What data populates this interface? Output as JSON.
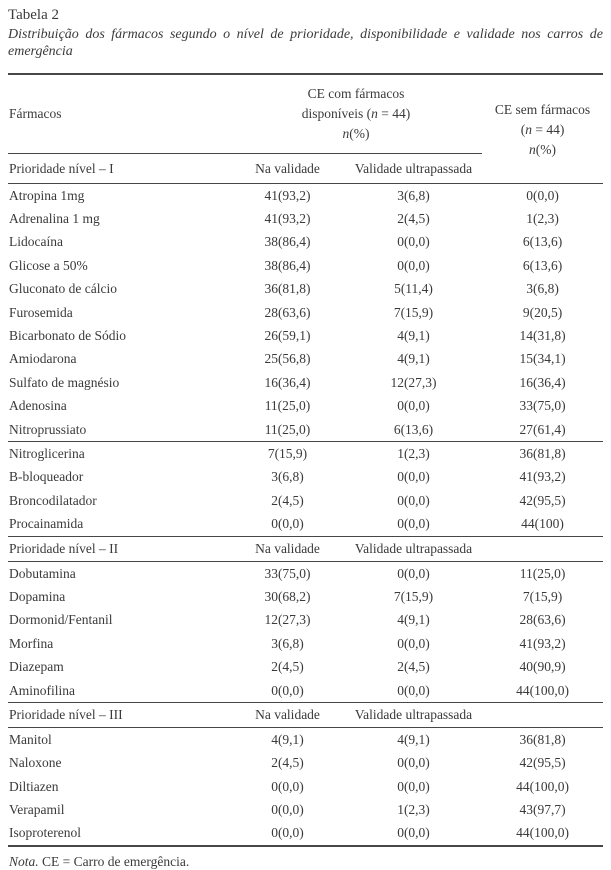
{
  "title": "Tabela 2",
  "subtitle": "Distribuição dos fármacos segundo o nível de prioridade, disponibilidade e validade nos carros de emergência",
  "colors": {
    "background": "#ffffff",
    "text": "#3a3a3a",
    "rule": "#474747"
  },
  "table": {
    "col_headers": {
      "farmacos": "Fármacos",
      "group_available": [
        "CE com fármacos",
        "disponíveis (n = 44)",
        "n(%)"
      ],
      "group_without": [
        "CE sem fármacos",
        "(n = 44)",
        "n(%)"
      ]
    },
    "sections": [
      {
        "label": "Prioridade nível – I",
        "sub_headers": [
          "Na validade",
          "Validade ultrapassada"
        ],
        "rows": [
          {
            "name": "Atropina 1mg",
            "valid": "41(93,2)",
            "expired": "3(6,8)",
            "without": "0(0,0)"
          },
          {
            "name": "Adrenalina 1 mg",
            "valid": "41(93,2)",
            "expired": "2(4,5)",
            "without": "1(2,3)"
          },
          {
            "name": "Lidocaína",
            "valid": "38(86,4)",
            "expired": "0(0,0)",
            "without": "6(13,6)"
          },
          {
            "name": "Glicose a 50%",
            "valid": "38(86,4)",
            "expired": "0(0,0)",
            "without": "6(13,6)"
          },
          {
            "name": "Gluconato de cálcio",
            "valid": "36(81,8)",
            "expired": "5(11,4)",
            "without": "3(6,8)"
          },
          {
            "name": "Furosemida",
            "valid": "28(63,6)",
            "expired": "7(15,9)",
            "without": "9(20,5)"
          },
          {
            "name": "Bicarbonato de Sódio",
            "valid": "26(59,1)",
            "expired": "4(9,1)",
            "without": "14(31,8)"
          },
          {
            "name": "Amiodarona",
            "valid": "25(56,8)",
            "expired": "4(9,1)",
            "without": "15(34,1)"
          },
          {
            "name": "Sulfato de magnésio",
            "valid": "16(36,4)",
            "expired": "12(27,3)",
            "without": "16(36,4)"
          },
          {
            "name": "Adenosina",
            "valid": "11(25,0)",
            "expired": "0(0,0)",
            "without": "33(75,0)"
          },
          {
            "name": "Nitroprussiato",
            "valid": "11(25,0)",
            "expired": "6(13,6)",
            "without": "27(61,4)",
            "divider_after": true
          },
          {
            "name": "Nitroglicerina",
            "valid": "7(15,9)",
            "expired": "1(2,3)",
            "without": "36(81,8)"
          },
          {
            "name": "B-bloqueador",
            "valid": "3(6,8)",
            "expired": "0(0,0)",
            "without": "41(93,2)"
          },
          {
            "name": "Broncodilatador",
            "valid": "2(4,5)",
            "expired": "0(0,0)",
            "without": "42(95,5)"
          },
          {
            "name": "Procainamida",
            "valid": "0(0,0)",
            "expired": "0(0,0)",
            "without": "44(100)"
          }
        ]
      },
      {
        "label": "Prioridade nível – II",
        "sub_headers": [
          "Na validade",
          "Validade ultrapassada"
        ],
        "rows": [
          {
            "name": "Dobutamina",
            "valid": "33(75,0)",
            "expired": "0(0,0)",
            "without": "11(25,0)"
          },
          {
            "name": "Dopamina",
            "valid": "30(68,2)",
            "expired": "7(15,9)",
            "without": "7(15,9)"
          },
          {
            "name": "Dormonid/Fentanil",
            "valid": "12(27,3)",
            "expired": "4(9,1)",
            "without": "28(63,6)"
          },
          {
            "name": "Morfina",
            "valid": "3(6,8)",
            "expired": "0(0,0)",
            "without": "41(93,2)"
          },
          {
            "name": "Diazepam",
            "valid": "2(4,5)",
            "expired": "2(4,5)",
            "without": "40(90,9)"
          },
          {
            "name": "Aminofilina",
            "valid": "0(0,0)",
            "expired": "0(0,0)",
            "without": "44(100,0)"
          }
        ]
      },
      {
        "label": "Prioridade nível – III",
        "sub_headers": [
          "Na validade",
          "Validade ultrapassada"
        ],
        "rows": [
          {
            "name": "Manitol",
            "valid": "4(9,1)",
            "expired": "4(9,1)",
            "without": "36(81,8)"
          },
          {
            "name": "Naloxone",
            "valid": "2(4,5)",
            "expired": "0(0,0)",
            "without": "42(95,5)"
          },
          {
            "name": "Diltiazen",
            "valid": "0(0,0)",
            "expired": "0(0,0)",
            "without": "44(100,0)"
          },
          {
            "name": "Verapamil",
            "valid": "0(0,0)",
            "expired": "1(2,3)",
            "without": "43(97,7)"
          },
          {
            "name": "Isoproterenol",
            "valid": "0(0,0)",
            "expired": "0(0,0)",
            "without": "44(100,0)"
          }
        ]
      }
    ]
  },
  "note": {
    "label": "Nota.",
    "text": "CE = Carro de emergência."
  }
}
